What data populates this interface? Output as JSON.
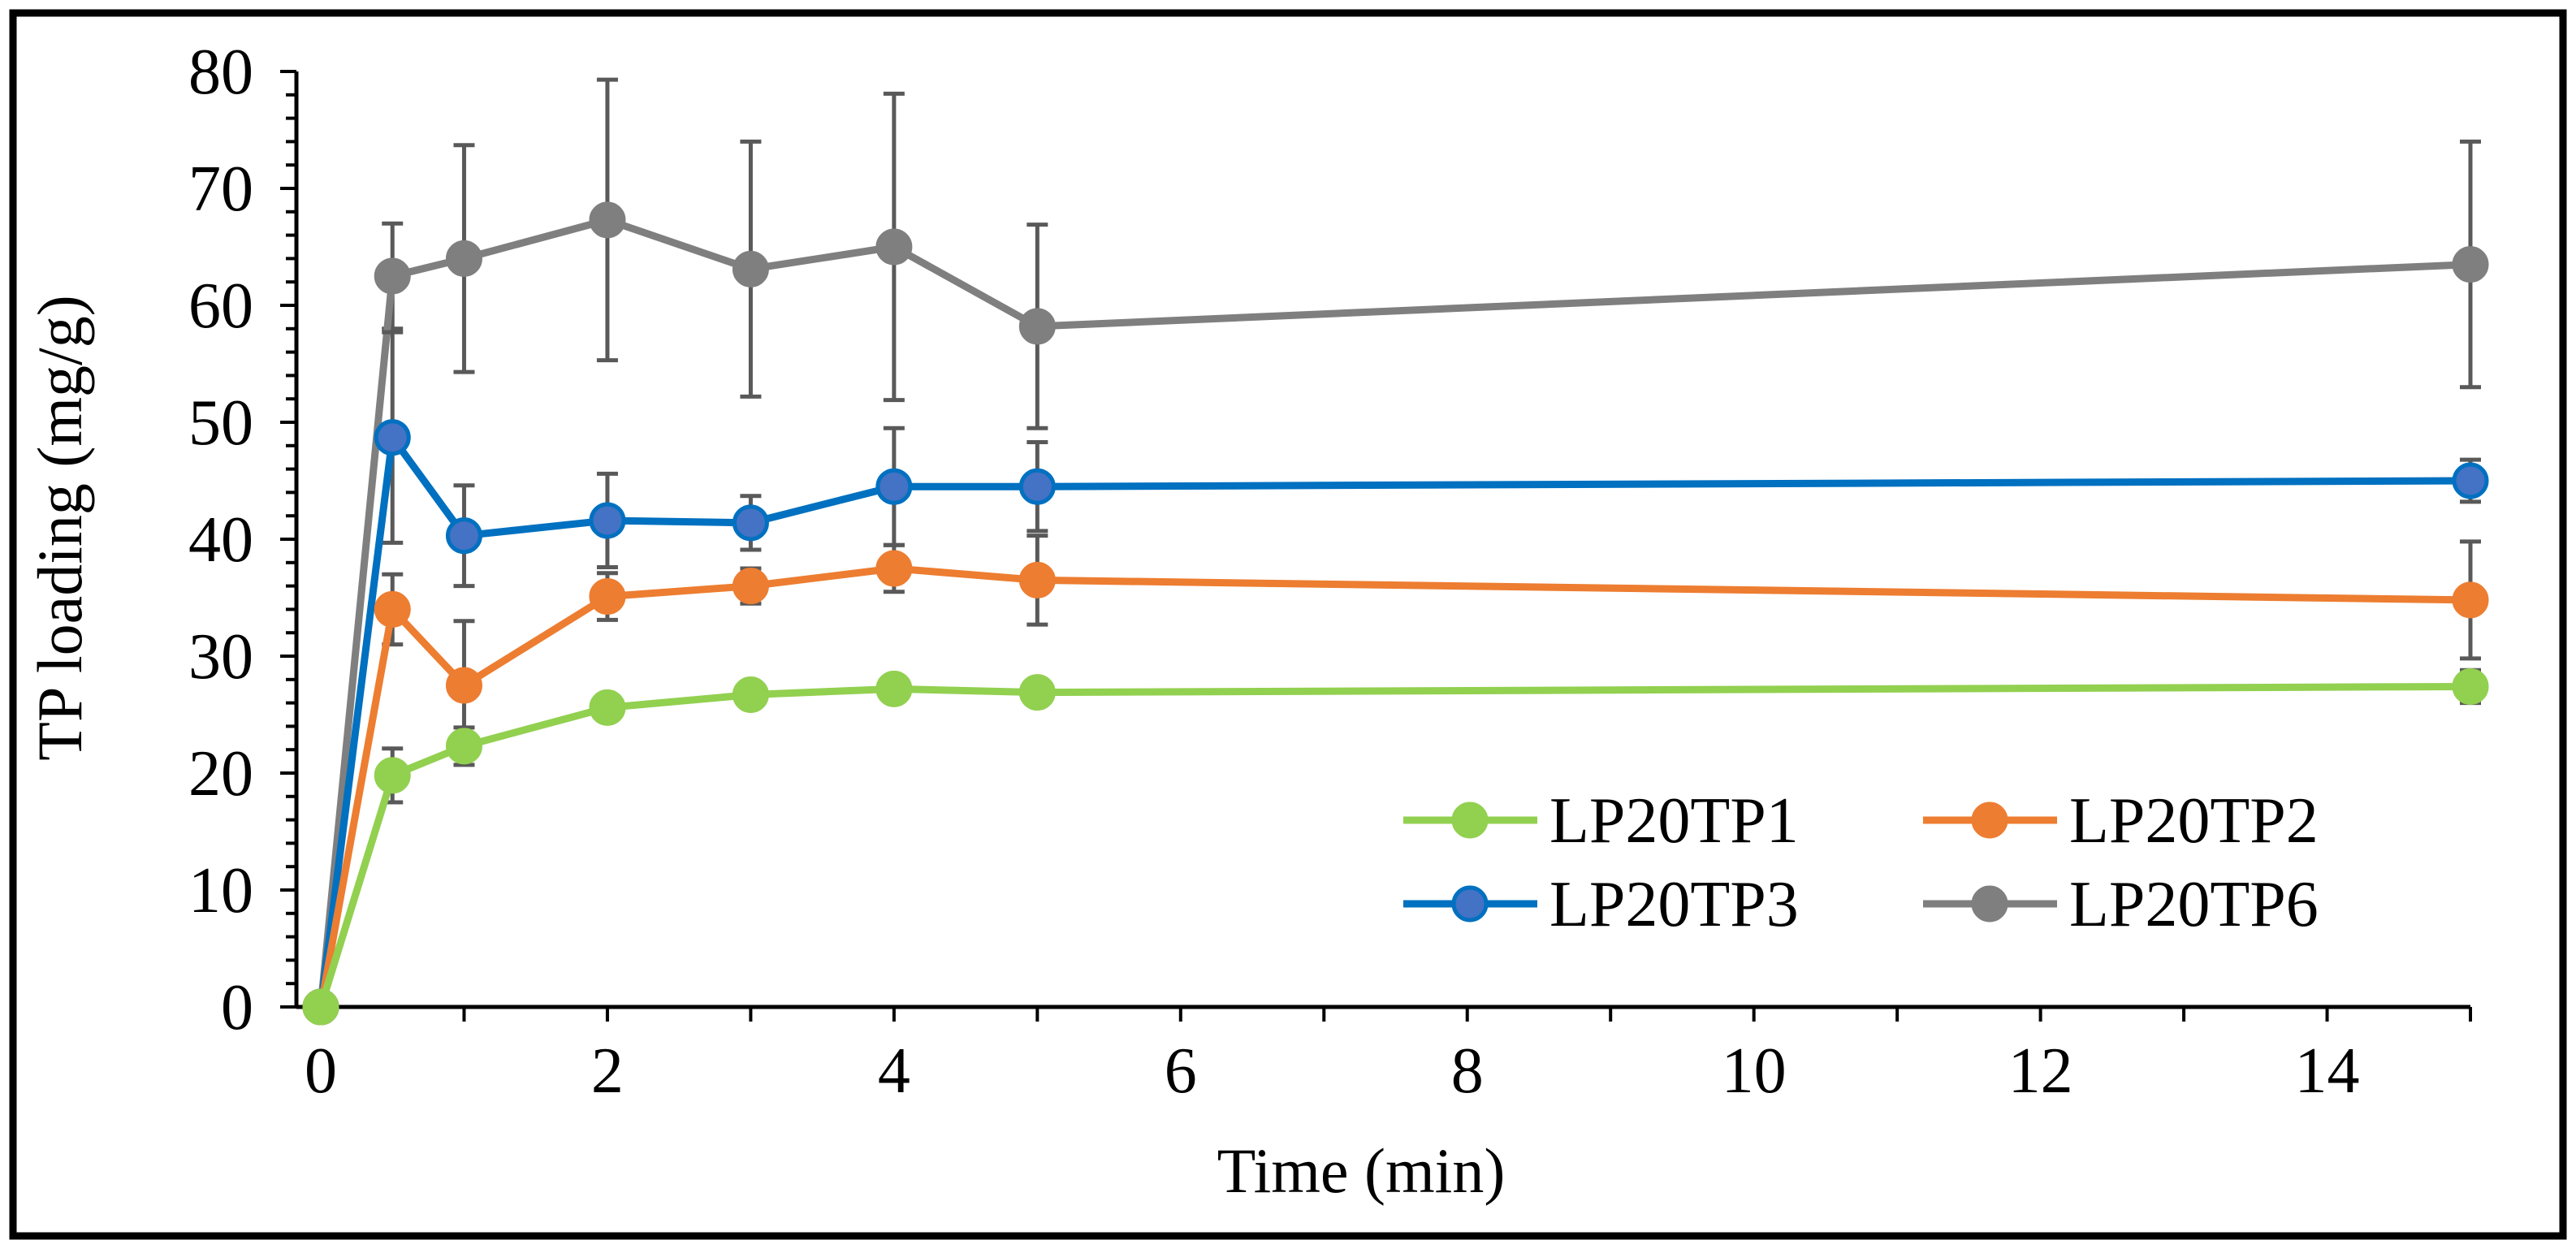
{
  "chart_data": {
    "type": "line",
    "xlabel": "Time (min)",
    "ylabel": "TP loading (mg/g)",
    "xlim": [
      0,
      15
    ],
    "ylim": [
      0,
      80
    ],
    "x_ticks": [
      0,
      2,
      4,
      6,
      8,
      10,
      12,
      14
    ],
    "y_ticks": [
      0,
      10,
      20,
      30,
      40,
      50,
      60,
      70,
      80
    ],
    "x_tick_labels": [
      "0",
      "2",
      "4",
      "6",
      "8",
      "10",
      "12",
      "14"
    ],
    "y_tick_labels": [
      "0",
      "10",
      "20",
      "30",
      "40",
      "50",
      "60",
      "70",
      "80"
    ],
    "grid": false,
    "legend_position": "bottom-right",
    "x": [
      0,
      0.5,
      1,
      2,
      3,
      4,
      5,
      15
    ],
    "series": [
      {
        "name": "LP20TP1",
        "color": "#92d050",
        "values": [
          0,
          19.8,
          22.3,
          25.6,
          26.7,
          27.2,
          26.9,
          27.4
        ],
        "errors": [
          0,
          2.3,
          1.6,
          0.6,
          0.6,
          0.6,
          0.5,
          1.4
        ]
      },
      {
        "name": "LP20TP2",
        "color": "#ed7d31",
        "values": [
          0,
          34.0,
          27.5,
          35.1,
          36.0,
          37.5,
          36.5,
          34.8
        ],
        "errors": [
          0,
          3.0,
          5.5,
          2.0,
          1.5,
          2.0,
          3.8,
          5.0
        ]
      },
      {
        "name": "LP20TP3",
        "color": "#0070c0",
        "values": [
          0,
          48.7,
          40.3,
          41.6,
          41.4,
          44.5,
          44.5,
          45.0
        ],
        "errors": [
          0,
          9.0,
          4.3,
          4.0,
          2.3,
          5.0,
          3.8,
          1.8
        ]
      },
      {
        "name": "LP20TP6",
        "color": "#7f7f7f",
        "values": [
          0,
          62.5,
          64.0,
          67.3,
          63.1,
          65.0,
          58.2,
          63.5
        ],
        "errors": [
          0,
          4.5,
          9.7,
          12.0,
          10.9,
          13.1,
          8.7,
          10.5
        ]
      }
    ]
  }
}
